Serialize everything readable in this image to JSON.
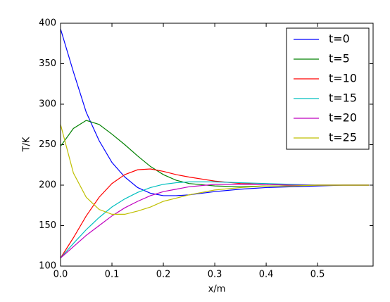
{
  "chart_data": {
    "type": "line",
    "xlabel": "x/m",
    "ylabel": "T/K",
    "x": [
      0,
      0.025,
      0.05,
      0.075,
      0.1,
      0.125,
      0.15,
      0.175,
      0.2,
      0.225,
      0.25,
      0.3,
      0.35,
      0.4,
      0.45,
      0.5,
      0.55,
      0.6
    ],
    "series": [
      {
        "name": "t=0",
        "color": "#0000ff",
        "values": [
          393,
          340,
          290,
          255,
          228,
          210,
          197,
          190,
          187,
          187,
          188,
          192,
          195,
          197,
          198,
          199,
          200,
          200
        ]
      },
      {
        "name": "t=5",
        "color": "#008000",
        "values": [
          248,
          270,
          280,
          275,
          263,
          250,
          236,
          223,
          213,
          206,
          202,
          199,
          198,
          199,
          199,
          200,
          200,
          200
        ]
      },
      {
        "name": "t=10",
        "color": "#ff0000",
        "values": [
          110,
          135,
          162,
          185,
          202,
          213,
          219,
          220,
          217,
          213,
          210,
          205,
          202,
          201,
          200,
          200,
          200,
          200
        ]
      },
      {
        "name": "t=15",
        "color": "#00bfbf",
        "values": [
          110,
          128,
          145,
          160,
          173,
          183,
          191,
          197,
          201,
          203,
          204,
          204,
          203,
          202,
          201,
          200,
          200,
          200
        ]
      },
      {
        "name": "t=20",
        "color": "#bf00bf",
        "values": [
          110,
          124,
          138,
          150,
          162,
          172,
          180,
          187,
          192,
          195,
          198,
          201,
          201,
          201,
          200,
          200,
          200,
          200
        ]
      },
      {
        "name": "t=25",
        "color": "#bfbf00",
        "values": [
          275,
          215,
          185,
          170,
          164,
          164,
          168,
          173,
          180,
          184,
          188,
          194,
          197,
          199,
          199,
          200,
          200,
          200
        ]
      }
    ],
    "xlim": [
      0,
      0.608
    ],
    "xticks": [
      {
        "value": 0,
        "label": "0.0"
      },
      0.1,
      0.2,
      0.3,
      0.4,
      0.5
    ],
    "ylim": [
      100,
      400
    ],
    "yticks": [
      100,
      150,
      200,
      250,
      300,
      350,
      400
    ],
    "legend": "upper right",
    "grid": false
  }
}
